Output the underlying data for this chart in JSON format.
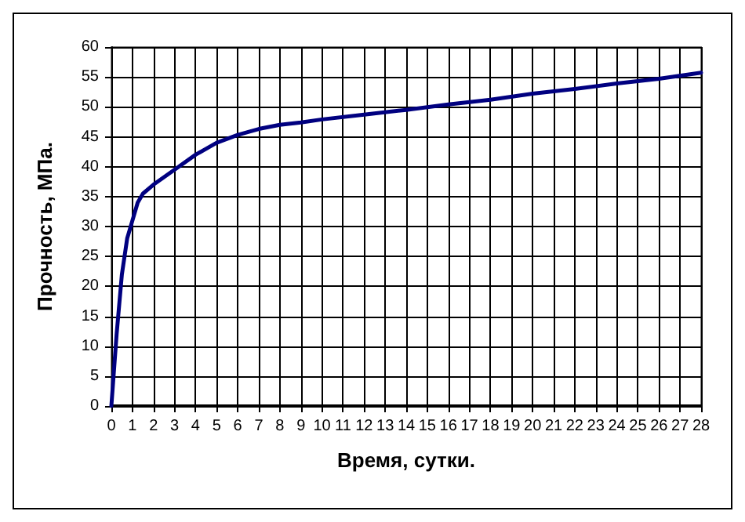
{
  "chart_data": {
    "type": "line",
    "xlabel": "Время, сутки.",
    "ylabel": "Прочность, МПа.",
    "x": [
      0,
      0.25,
      0.5,
      0.75,
      1,
      1.25,
      1.5,
      2,
      3,
      4,
      5,
      6,
      7,
      8,
      9,
      10,
      12,
      14,
      16,
      18,
      20,
      22,
      24,
      26,
      28
    ],
    "series": [
      {
        "color": "#000080",
        "values": [
          0,
          12,
          22,
          28,
          31,
          34,
          35.5,
          37,
          39.5,
          42,
          44,
          45.3,
          46.3,
          47,
          47.4,
          47.9,
          48.7,
          49.5,
          50.4,
          51.2,
          52.2,
          53,
          53.9,
          54.7,
          55.7
        ]
      }
    ],
    "xlim": [
      0,
      28
    ],
    "xticks": [
      0,
      1,
      2,
      3,
      4,
      5,
      6,
      7,
      8,
      9,
      10,
      11,
      12,
      13,
      14,
      15,
      16,
      17,
      18,
      19,
      20,
      21,
      22,
      23,
      24,
      25,
      26,
      27,
      28
    ],
    "ylim": [
      0,
      60
    ],
    "yticks": [
      0,
      5,
      10,
      15,
      20,
      25,
      30,
      35,
      40,
      45,
      50,
      55,
      60
    ],
    "grid": true,
    "marker": "none",
    "line_style": "solid"
  }
}
